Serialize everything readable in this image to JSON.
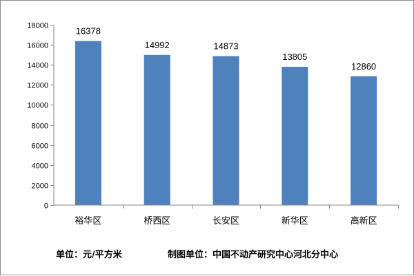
{
  "colors": {
    "bar": "#4f81bd",
    "axis": "#868686"
  },
  "chart_data": {
    "type": "bar",
    "categories": [
      "裕华区",
      "桥西区",
      "长安区",
      "新华区",
      "高新区"
    ],
    "values": [
      16378,
      14992,
      14873,
      13805,
      12860
    ],
    "data_labels": [
      "16378",
      "14992",
      "14873",
      "13805",
      "12860"
    ],
    "title": "",
    "xlabel": "",
    "ylabel": "",
    "ylim": [
      0,
      18000
    ],
    "yticks": [
      0,
      2000,
      4000,
      6000,
      8000,
      10000,
      12000,
      14000,
      16000,
      18000
    ],
    "ytick_labels": [
      "0",
      "2000",
      "4000",
      "6000",
      "8000",
      "10000",
      "12000",
      "14000",
      "16000",
      "18000"
    ],
    "grid": false,
    "legend": "none"
  },
  "footer": {
    "unit_text": "单位：元/平方米",
    "source_text": "制图单位：中国不动产研究中心河北分中心"
  }
}
